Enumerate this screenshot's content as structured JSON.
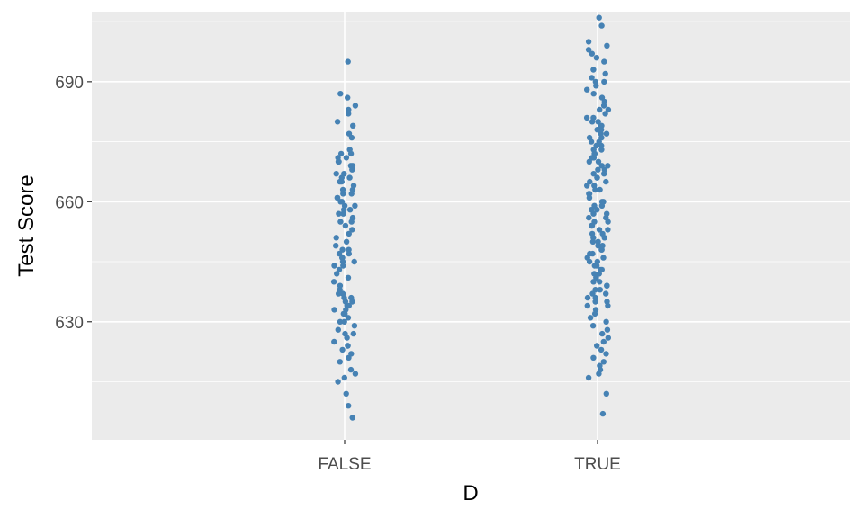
{
  "chart_data": {
    "type": "scatter",
    "subtype": "jitter strip plot",
    "title": "",
    "xlabel": "D",
    "ylabel": "Test Score",
    "categories": [
      "FALSE",
      "TRUE"
    ],
    "ylim": [
      600.5,
      707.5
    ],
    "y_ticks": [
      630,
      660,
      690
    ],
    "grid": true,
    "point_color": "#4682b4",
    "panel_background": "#ebebeb",
    "series": [
      {
        "category": "FALSE",
        "values": [
          695,
          687,
          686,
          684,
          683,
          682,
          680,
          679,
          677,
          676,
          673,
          672,
          672,
          671,
          671,
          670,
          670,
          669,
          669,
          668,
          667,
          667,
          666,
          666,
          665,
          665,
          664,
          663,
          663,
          662,
          662,
          661,
          661,
          660,
          660,
          659,
          659,
          658,
          658,
          657,
          657,
          656,
          655,
          655,
          654,
          653,
          652,
          651,
          650,
          649,
          648,
          648,
          647,
          647,
          646,
          646,
          645,
          645,
          644,
          644,
          643,
          642,
          641,
          640,
          639,
          638,
          637,
          637,
          636,
          636,
          635,
          635,
          634,
          634,
          633,
          633,
          632,
          632,
          631,
          630,
          630,
          629,
          628,
          627,
          627,
          626,
          625,
          624,
          624,
          623,
          622,
          621,
          620,
          618,
          617,
          616,
          615,
          612,
          609,
          606
        ]
      },
      {
        "category": "TRUE",
        "values": [
          706,
          704,
          700,
          699,
          698,
          697,
          696,
          695,
          693,
          692,
          691,
          690,
          690,
          689,
          688,
          687,
          686,
          685,
          684,
          683,
          683,
          682,
          681,
          681,
          680,
          680,
          679,
          679,
          678,
          678,
          677,
          677,
          676,
          676,
          675,
          675,
          674,
          674,
          673,
          673,
          672,
          672,
          671,
          671,
          670,
          670,
          669,
          669,
          668,
          668,
          667,
          667,
          666,
          666,
          665,
          665,
          664,
          664,
          663,
          663,
          662,
          662,
          661,
          661,
          660,
          660,
          659,
          659,
          658,
          658,
          657,
          657,
          656,
          656,
          655,
          655,
          654,
          654,
          653,
          653,
          652,
          652,
          651,
          651,
          650,
          650,
          649,
          649,
          648,
          648,
          647,
          647,
          646,
          646,
          645,
          645,
          644,
          644,
          643,
          643,
          642,
          642,
          641,
          641,
          640,
          640,
          639,
          639,
          638,
          638,
          637,
          637,
          636,
          636,
          635,
          635,
          634,
          634,
          633,
          632,
          631,
          630,
          629,
          628,
          627,
          626,
          625,
          624,
          623,
          622,
          621,
          620,
          619,
          618,
          617,
          616,
          612,
          607
        ]
      }
    ]
  }
}
